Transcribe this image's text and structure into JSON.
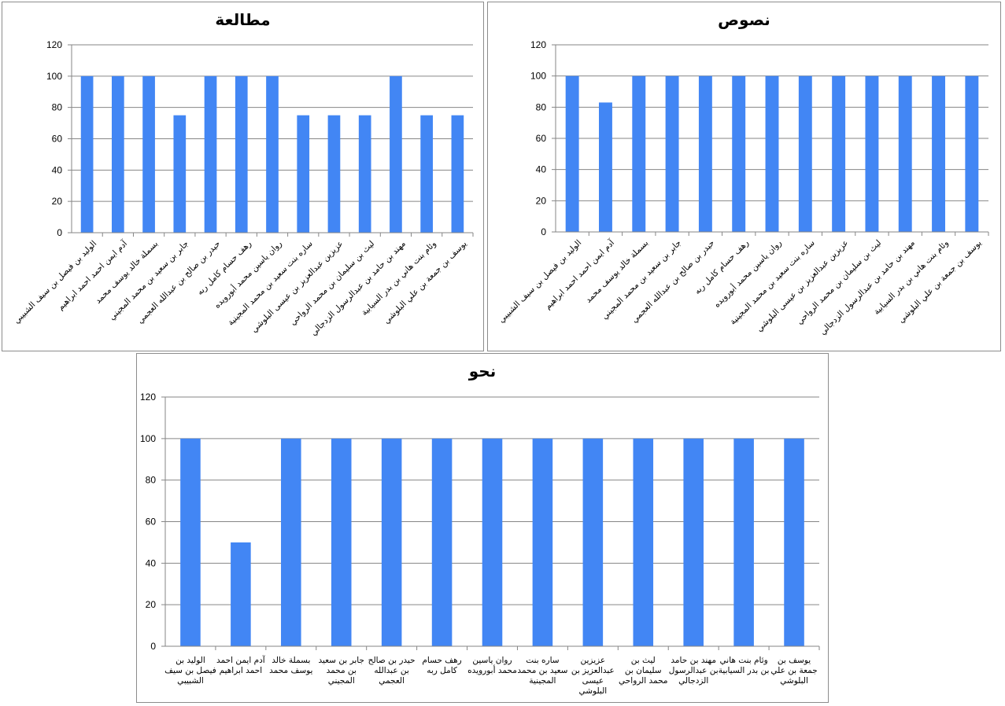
{
  "chart_data": [
    {
      "type": "bar",
      "title": "مطالعة",
      "categories": [
        "الوليد بن فيصل بن سيف الشبيبي",
        "آدم ايمن احمد احمد ابراهيم",
        "بسملة خالد يوسف محمد",
        "جابر بن سعيد بن محمد المجيني",
        "حيدر بن صالح بن عبدالله العجمي",
        "رهف حسام كامل ربه",
        "روان ياسين محمد أبورويده",
        "ساره بنت سعيد بن محمد المجينية",
        "عزيزين عبدالعزيز بن عيسى البلوشي",
        "ليث بن سليمان بن محمد الرواحي",
        "مهند بن حامد بن عبدالرسول الزدجالي",
        "وئام بنت هاني بن بدر السيابية",
        "يوسف بن جمعة بن علي البلوشي"
      ],
      "values": [
        100,
        100,
        100,
        75,
        100,
        100,
        100,
        75,
        75,
        75,
        100,
        75,
        75
      ],
      "ylim": [
        0,
        120
      ],
      "yticks": [
        0,
        20,
        40,
        60,
        80,
        100,
        120
      ],
      "grid": true,
      "color": "#4286f4"
    },
    {
      "type": "bar",
      "title": "نصوص",
      "categories": [
        "الوليد بن فيصل بن سيف الشبيبي",
        "آدم ايمن احمد احمد ابراهيم",
        "بسملة خالد يوسف محمد",
        "جابر بن سعيد بن محمد المجيني",
        "حيدر بن صالح بن عبدالله العجمي",
        "رهف حسام كامل ربه",
        "روان ياسين محمد أبورويده",
        "ساره بنت سعيد بن محمد المجينية",
        "عزيزين عبدالعزيز بن عيسى البلوشي",
        "ليث بن سليمان بن محمد الرواحي",
        "مهند بن حامد بن عبدالرسول الزدجالي",
        "وئام بنت هاني بن بدر السيابية",
        "يوسف بن جمعة بن علي البلوشي"
      ],
      "values": [
        100,
        83,
        100,
        100,
        100,
        100,
        100,
        100,
        100,
        100,
        100,
        100,
        100
      ],
      "ylim": [
        0,
        120
      ],
      "yticks": [
        0,
        20,
        40,
        60,
        80,
        100,
        120
      ],
      "grid": true,
      "color": "#4286f4"
    },
    {
      "type": "bar",
      "title": "نحو",
      "categories": [
        "الوليد بن فيصل بن سيف الشبيبي",
        "آدم ايمن احمد احمد ابراهيم",
        "بسملة خالد يوسف محمد",
        "جابر بن سعيد بن محمد المجيني",
        "حيدر بن صالح بن عبدالله العجمي",
        "رهف حسام كامل ربه",
        "روان ياسين محمد أبورويده",
        "ساره بنت سعيد بن محمد المجينية",
        "عزيزين عبدالعزيز بن عيسى البلوشي",
        "ليث بن سليمان بن محمد الرواحي",
        "مهند بن حامد بن عبدالرسول الزدجالي",
        "وئام بنت هاني بن بدر السيابية",
        "يوسف بن جمعة بن علي البلوشي"
      ],
      "values": [
        100,
        50,
        100,
        100,
        100,
        100,
        100,
        100,
        100,
        100,
        100,
        100,
        100
      ],
      "ylim": [
        0,
        120
      ],
      "yticks": [
        0,
        20,
        40,
        60,
        80,
        100,
        120
      ],
      "grid": true,
      "color": "#4286f4"
    }
  ]
}
